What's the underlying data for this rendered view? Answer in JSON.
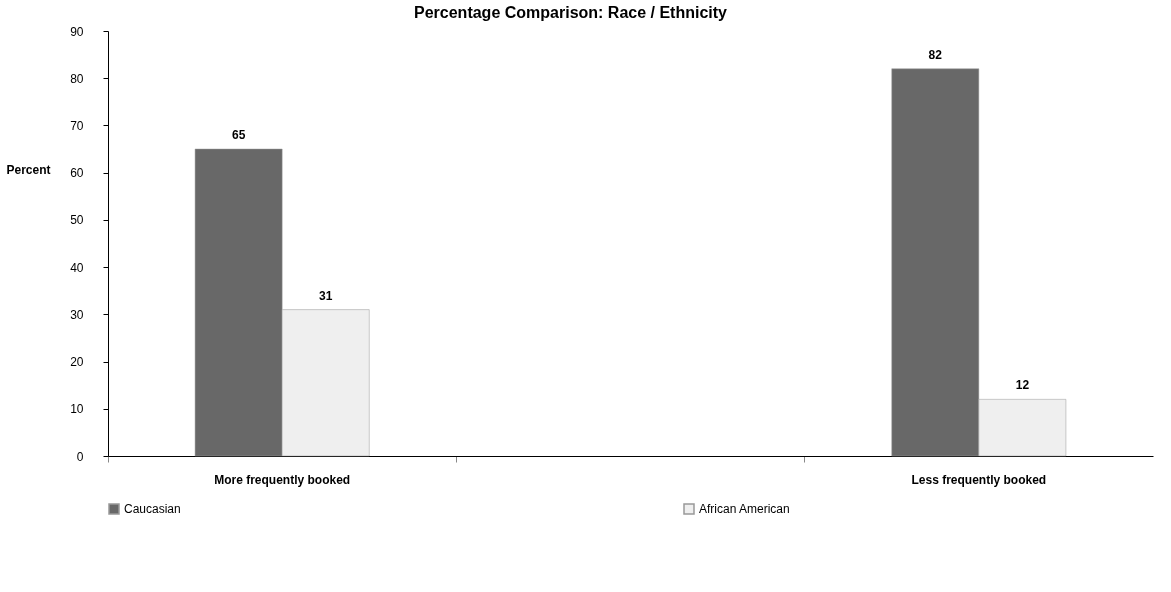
{
  "chart_data": {
    "type": "bar",
    "title": "Percentage Comparison: Race / Ethnicity",
    "ylabel": "Percent",
    "categories": [
      "More frequently booked",
      null,
      "Less frequently booked"
    ],
    "series": [
      {
        "name": "Caucasian",
        "color": "#686868",
        "values": [
          65,
          null,
          82
        ]
      },
      {
        "name": "African American",
        "color": "#efefef",
        "values": [
          31,
          null,
          12
        ]
      }
    ],
    "ylim": [
      0,
      90
    ],
    "yticks": [
      0,
      10,
      20,
      30,
      40,
      50,
      60,
      70,
      80,
      90
    ],
    "grid": false,
    "legend": "bottom",
    "data_labels": true
  }
}
